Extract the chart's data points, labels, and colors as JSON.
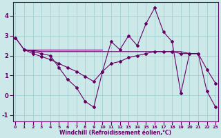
{
  "xlabel": "Windchill (Refroidissement éolien,°C)",
  "bg_color": "#cce8e8",
  "line_color": "#660066",
  "grid_color": "#99cccc",
  "series": [
    {
      "x": [
        0,
        1,
        2,
        3,
        4,
        5,
        6,
        7,
        8,
        9,
        10,
        11,
        12,
        13,
        14,
        15,
        16,
        17,
        18,
        19,
        20,
        21,
        22,
        23
      ],
      "y": [
        2.9,
        2.3,
        2.2,
        2.1,
        2.0,
        1.4,
        0.8,
        0.4,
        -0.3,
        -0.6,
        1.2,
        2.7,
        2.3,
        3.0,
        2.5,
        3.6,
        4.4,
        3.2,
        2.7,
        0.1,
        2.1,
        2.1,
        0.2,
        -0.6
      ]
    },
    {
      "x": [
        1,
        2,
        3,
        4,
        5,
        6,
        7,
        8,
        9,
        10,
        11,
        12,
        13,
        14,
        15,
        16,
        17,
        18,
        19,
        20,
        21
      ],
      "y": [
        2.3,
        2.25,
        2.2,
        2.2,
        2.2,
        2.2,
        2.2,
        2.2,
        2.2,
        2.2,
        2.2,
        2.2,
        2.2,
        2.2,
        2.2,
        2.2,
        2.2,
        2.2,
        2.2,
        2.1,
        2.1
      ]
    },
    {
      "x": [
        1,
        10
      ],
      "y": [
        2.3,
        2.3
      ]
    },
    {
      "x": [
        0,
        1,
        2,
        3,
        4,
        5,
        6,
        7,
        8,
        9,
        10,
        11,
        12,
        13,
        14,
        15,
        16,
        17,
        18,
        19,
        20,
        21,
        22,
        23
      ],
      "y": [
        2.9,
        2.3,
        2.1,
        1.95,
        1.8,
        1.6,
        1.4,
        1.2,
        0.95,
        0.7,
        1.2,
        1.6,
        1.7,
        1.9,
        2.0,
        2.1,
        2.2,
        2.2,
        2.2,
        2.1,
        2.1,
        2.1,
        1.3,
        0.6
      ]
    }
  ],
  "xlim": [
    -0.3,
    23.3
  ],
  "ylim": [
    -1.3,
    4.7
  ],
  "xticks": [
    0,
    1,
    2,
    3,
    4,
    5,
    6,
    7,
    8,
    9,
    10,
    11,
    12,
    13,
    14,
    15,
    16,
    17,
    18,
    19,
    20,
    21,
    22,
    23
  ],
  "yticks": [
    -1,
    0,
    1,
    2,
    3,
    4
  ],
  "linewidth": 0.8,
  "markersize": 2.0
}
